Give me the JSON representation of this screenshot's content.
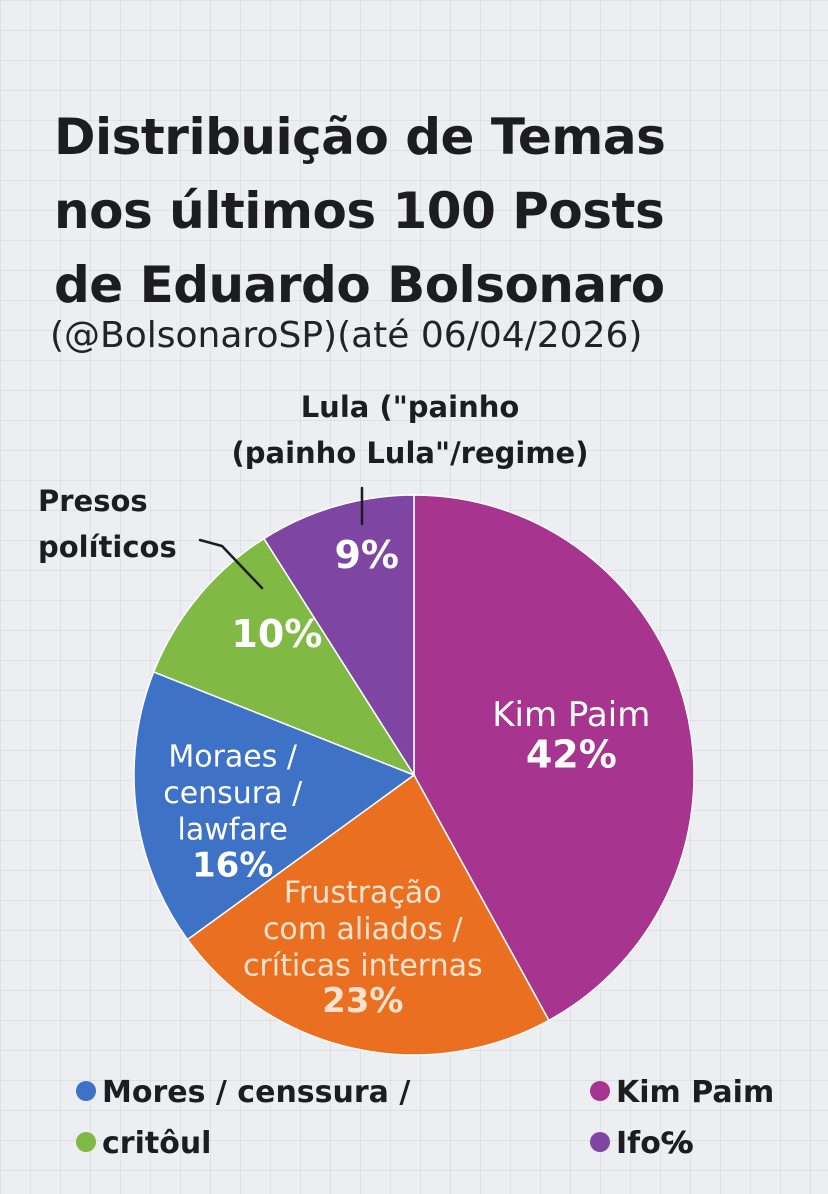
{
  "title_lines": [
    "Distribuição de Temas",
    "nos últimos 100 Posts",
    "de Eduardo Bolsonaro"
  ],
  "subtitle": "(@BolsonaroSP)(até 06/04/2026)",
  "chart_data": {
    "type": "pie",
    "title": "Distribuição de Temas nos últimos 100 Posts de Eduardo Bolsonaro",
    "subtitle": "(@BolsonaroSP)(até 06/04/2026)",
    "unit": "%",
    "slices": [
      {
        "label_lines": [
          "Kim Paim"
        ],
        "value": 42,
        "value_label": "42%",
        "color": "#a7348e"
      },
      {
        "label_lines": [
          "Frustração",
          "com aliados /",
          "críticas internas"
        ],
        "value": 23,
        "value_label": "23%",
        "color": "#eb6f20",
        "label_color": "#fbe3cf"
      },
      {
        "label_lines": [
          "Moraes /",
          "censura /",
          "lawfare"
        ],
        "value": 16,
        "value_label": "16%",
        "color": "#3d72c6"
      },
      {
        "label_lines": [],
        "value": 10,
        "value_label": "10%",
        "color": "#80b944",
        "callout_lines": [
          "Presos",
          "políticos"
        ]
      },
      {
        "label_lines": [],
        "value": 9,
        "value_label": "9%",
        "color": "#7e46a2",
        "callout_lines": [
          "Lula (\"painho",
          "(painho Lula\"/regime)"
        ]
      }
    ],
    "legend": [
      {
        "label": "Mores / censsura /",
        "color": "#3d72c6"
      },
      {
        "label": "Kim Paim",
        "color": "#a7348e"
      },
      {
        "label": "critôul",
        "color": "#80b944"
      },
      {
        "label": "Ifo℅",
        "color": "#7e46a2"
      }
    ]
  }
}
